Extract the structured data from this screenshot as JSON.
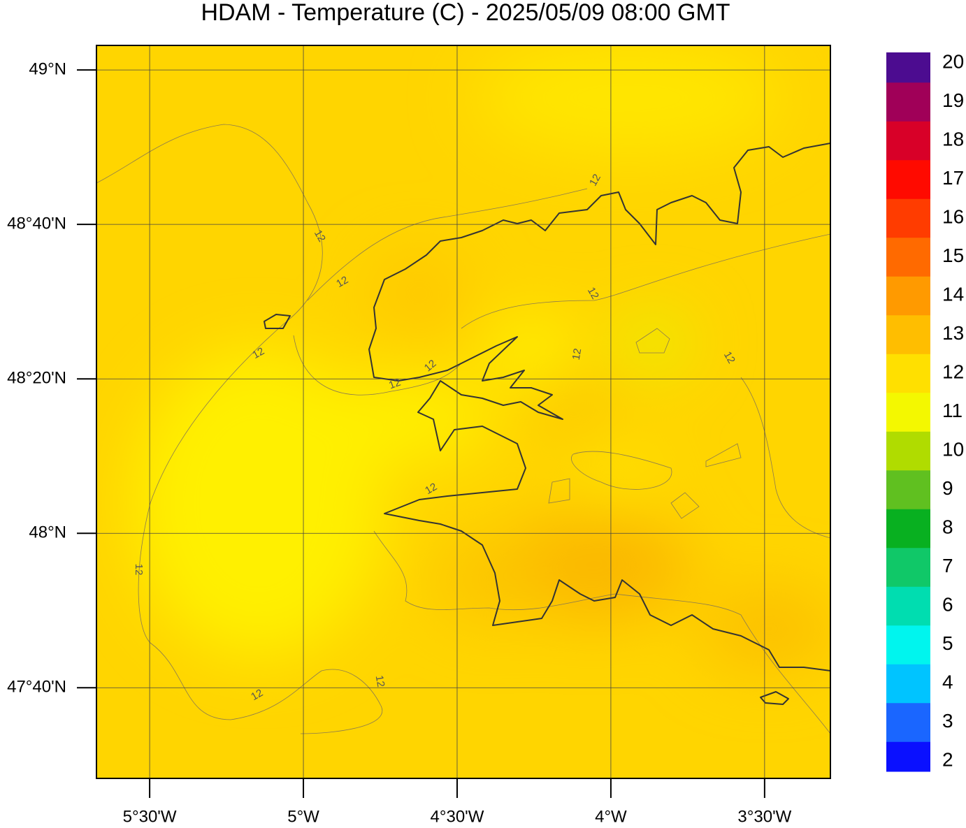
{
  "map": {
    "title": "HDAM - Temperature (C)  -  2025/05/09  08:00 GMT",
    "xlim": [
      -5.673,
      -3.286
    ],
    "ylim": [
      47.471,
      49.053
    ],
    "xticks": [
      {
        "value": -5.5,
        "label": "5°30'W"
      },
      {
        "value": -5,
        "label": "5°W"
      },
      {
        "value": -4.5,
        "label": "4°30'W"
      },
      {
        "value": -4,
        "label": "4°W"
      },
      {
        "value": -3.5,
        "label": "3°30'W"
      }
    ],
    "yticks": [
      {
        "value": 49,
        "label": "49°N"
      },
      {
        "value": 48.6667,
        "label": "48°40'N"
      },
      {
        "value": 48.3333,
        "label": "48°20'N"
      },
      {
        "value": 48,
        "label": "48°N"
      },
      {
        "value": 47.6667,
        "label": "47°40'N"
      }
    ],
    "contour_labels": [
      12,
      12,
      12,
      12,
      12,
      12,
      12,
      12,
      12,
      12,
      12,
      12,
      12
    ],
    "colorbar": {
      "lim": [
        1.73,
        20.27
      ],
      "ticks": [
        2,
        3,
        4,
        5,
        6,
        7,
        8,
        9,
        10,
        11,
        12,
        13,
        14,
        15,
        16,
        17,
        18,
        19,
        20
      ],
      "colors": [
        "#0a10ff",
        "#1a66ff",
        "#00c4ff",
        "#00f5ee",
        "#00ddb0",
        "#10c868",
        "#08b020",
        "#60c020",
        "#b0dc00",
        "#f4f800",
        "#ffe000",
        "#ffbe00",
        "#ff9a00",
        "#ff6a00",
        "#ff3c00",
        "#ff0a00",
        "#d80028",
        "#a00058",
        "#4c0c90"
      ]
    }
  }
}
